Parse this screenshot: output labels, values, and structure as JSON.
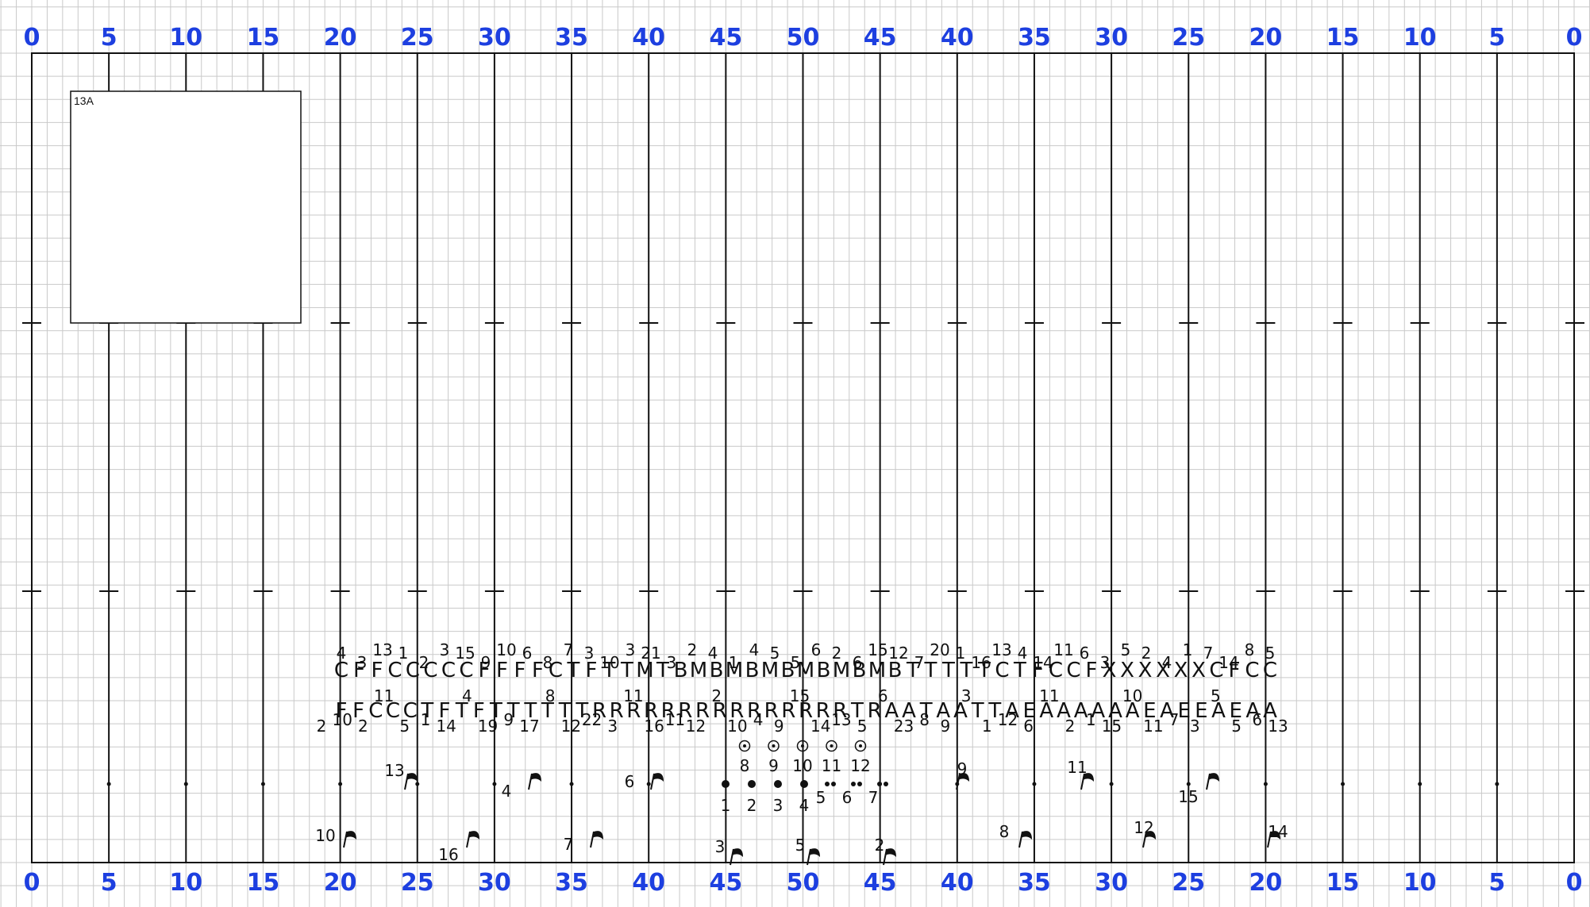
{
  "page_label": "13A",
  "colors": {
    "yard_number": "#1d3fe0",
    "grid_minor": "#c9c9c9",
    "line": "#111111",
    "background": "#ffffff"
  },
  "yard_numbers": [
    "0",
    "5",
    "10",
    "15",
    "20",
    "25",
    "30",
    "35",
    "40",
    "45",
    "50",
    "45",
    "40",
    "35",
    "30",
    "25",
    "20",
    "15",
    "10",
    "5",
    "0"
  ],
  "row_upper": {
    "symbols": [
      "C",
      "F",
      "F",
      "C",
      "C",
      "C",
      "C",
      "C",
      "F",
      "F",
      "F",
      "F",
      "C",
      "T",
      "F",
      "T",
      "T",
      "M",
      "T",
      "B",
      "M",
      "B",
      "M",
      "B",
      "M",
      "B",
      "M",
      "B",
      "M",
      "B",
      "M",
      "B",
      "T",
      "T",
      "T",
      "T",
      "T",
      "C",
      "T",
      "F",
      "C",
      "C",
      "F",
      "X",
      "X",
      "X",
      "X",
      "X",
      "X",
      "C",
      "F",
      "C",
      "C"
    ],
    "numbers": [
      "4",
      "3",
      "13",
      "1",
      "2",
      "3",
      "15",
      "9",
      "10",
      "6",
      "8",
      "7",
      "3",
      "10",
      "3",
      "21",
      "3",
      "2",
      "4",
      "1",
      "4",
      "5",
      "5",
      "6",
      "2",
      "6",
      "15",
      "12",
      "7",
      "20",
      "1",
      "16",
      "13",
      "4",
      "14",
      "11",
      "6",
      "3",
      "5",
      "2",
      "4",
      "1",
      "7",
      "14",
      "8",
      "5"
    ]
  },
  "row_lower": {
    "symbols": [
      "F",
      "F",
      "C",
      "C",
      "C",
      "T",
      "F",
      "T",
      "F",
      "T",
      "T",
      "T",
      "T",
      "T",
      "T",
      "R",
      "R",
      "R",
      "R",
      "R",
      "R",
      "R",
      "R",
      "R",
      "R",
      "R",
      "R",
      "R",
      "R",
      "R",
      "T",
      "R",
      "A",
      "A",
      "T",
      "A",
      "A",
      "T",
      "T",
      "A",
      "E",
      "A",
      "A",
      "A",
      "A",
      "A",
      "A",
      "E",
      "A",
      "E",
      "E",
      "A",
      "E",
      "A",
      "A"
    ],
    "numbers": [
      "2",
      "10",
      "2",
      "11",
      "5",
      "1",
      "14",
      "4",
      "19",
      "9",
      "17",
      "8",
      "12",
      "22",
      "3",
      "11",
      "16",
      "11",
      "12",
      "2",
      "10",
      "4",
      "9",
      "15",
      "14",
      "13",
      "5",
      "6",
      "23",
      "8",
      "9",
      "3",
      "1",
      "12",
      "6",
      "11",
      "2",
      "1",
      "15",
      "10",
      "11",
      "7",
      "3",
      "5",
      "5",
      "6",
      "13"
    ]
  },
  "circled_markers": [
    "8",
    "9",
    "10",
    "11",
    "12"
  ],
  "ground_markers": [
    "1",
    "2",
    "3",
    "4",
    "5",
    "6",
    "7"
  ],
  "flags_mid": [
    "13",
    "4",
    "6",
    "9",
    "11",
    "15"
  ],
  "flags_low": [
    "10",
    "16",
    "7",
    "3",
    "5",
    "2",
    "8",
    "12",
    "14"
  ]
}
